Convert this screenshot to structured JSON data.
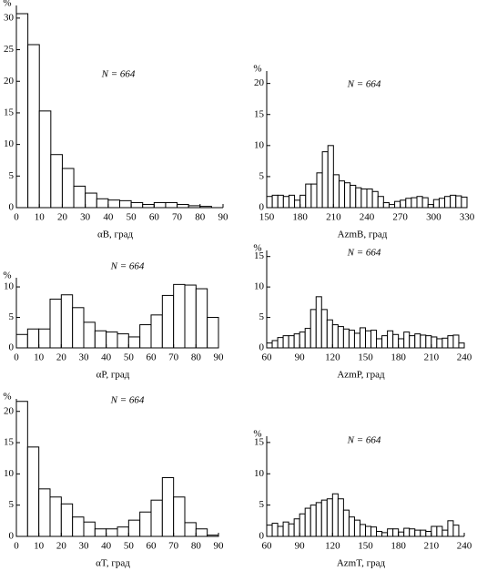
{
  "chart_data": [
    {
      "type": "histogram",
      "y_label": "%",
      "x_label": "αB, град",
      "annotation": "N = 664",
      "bins": [
        0,
        5,
        10,
        15,
        20,
        25,
        30,
        35,
        40,
        45,
        50,
        55,
        60,
        65,
        70,
        75,
        80,
        85,
        90
      ],
      "counts": [
        30.7,
        25.8,
        15.3,
        8.4,
        6.2,
        3.4,
        2.3,
        1.4,
        1.2,
        1.1,
        0.8,
        0.5,
        0.8,
        0.8,
        0.5,
        0.3,
        0.2,
        0
      ],
      "xlim": [
        0,
        90
      ],
      "xticks": [
        0,
        10,
        20,
        30,
        40,
        50,
        60,
        70,
        80,
        90
      ],
      "ylim": [
        0,
        32
      ],
      "yticks": [
        0,
        5,
        10,
        15,
        20,
        25,
        30
      ]
    },
    {
      "type": "histogram",
      "y_label": "%",
      "x_label": "AzmB, град",
      "annotation": "N = 664",
      "bins": [
        150,
        155,
        160,
        165,
        170,
        175,
        180,
        185,
        190,
        195,
        200,
        205,
        210,
        215,
        220,
        225,
        230,
        235,
        240,
        245,
        250,
        255,
        260,
        265,
        270,
        275,
        280,
        285,
        290,
        295,
        300,
        305,
        310,
        315,
        320,
        325,
        330
      ],
      "counts": [
        1.8,
        2.0,
        2.0,
        1.8,
        2.0,
        1.2,
        2.0,
        3.8,
        3.8,
        5.6,
        9.0,
        10.0,
        5.3,
        4.3,
        4.0,
        3.6,
        3.2,
        3.0,
        3.0,
        2.6,
        1.8,
        0.8,
        0.5,
        1.0,
        1.2,
        1.5,
        1.6,
        1.8,
        1.6,
        0.5,
        1.3,
        1.5,
        1.8,
        2.0,
        1.9,
        1.7
      ],
      "xlim": [
        150,
        330
      ],
      "xticks": [
        150,
        180,
        210,
        240,
        270,
        300,
        330
      ],
      "ylim": [
        0,
        22
      ],
      "yticks": [
        0,
        5,
        10,
        15,
        20
      ]
    },
    {
      "type": "histogram",
      "y_label": "%",
      "x_label": "αP, град",
      "annotation": "N = 664",
      "bins": [
        0,
        5,
        10,
        15,
        20,
        25,
        30,
        35,
        40,
        45,
        50,
        55,
        60,
        65,
        70,
        75,
        80,
        85,
        90
      ],
      "counts": [
        2.2,
        3.1,
        3.1,
        8.0,
        8.7,
        6.6,
        4.2,
        2.8,
        2.6,
        2.3,
        1.8,
        3.8,
        5.4,
        8.6,
        10.4,
        10.3,
        9.7,
        5.0
      ],
      "xlim": [
        0,
        90
      ],
      "xticks": [
        0,
        10,
        20,
        30,
        40,
        50,
        60,
        70,
        80,
        90
      ],
      "ylim": [
        0,
        11.5
      ],
      "yticks": [
        0,
        5,
        10
      ]
    },
    {
      "type": "histogram",
      "y_label": "%",
      "x_label": "AzmP, град",
      "annotation": "N = 664",
      "bins": [
        60,
        65,
        70,
        75,
        80,
        85,
        90,
        95,
        100,
        105,
        110,
        115,
        120,
        125,
        130,
        135,
        140,
        145,
        150,
        155,
        160,
        165,
        170,
        175,
        180,
        185,
        190,
        195,
        200,
        205,
        210,
        215,
        220,
        225,
        230,
        235,
        240
      ],
      "counts": [
        0.8,
        1.2,
        1.7,
        2.0,
        2.0,
        2.3,
        2.6,
        3.2,
        6.3,
        8.4,
        6.3,
        4.6,
        3.8,
        3.5,
        3.1,
        2.9,
        2.4,
        3.3,
        2.8,
        2.9,
        1.5,
        2.0,
        2.8,
        2.2,
        1.5,
        2.6,
        2.0,
        2.3,
        2.1,
        2.0,
        1.8,
        1.5,
        1.6,
        2.0,
        2.1,
        0.8
      ],
      "xlim": [
        60,
        240
      ],
      "xticks": [
        60,
        90,
        120,
        150,
        180,
        210,
        240
      ],
      "ylim": [
        0,
        16
      ],
      "yticks": [
        0,
        5,
        10,
        15
      ]
    },
    {
      "type": "histogram",
      "y_label": "%",
      "x_label": "αT, град",
      "annotation": "N = 664",
      "bins": [
        0,
        5,
        10,
        15,
        20,
        25,
        30,
        35,
        40,
        45,
        50,
        55,
        60,
        65,
        70,
        75,
        80,
        85,
        90
      ],
      "counts": [
        21.6,
        14.3,
        7.6,
        6.3,
        5.2,
        3.1,
        2.3,
        1.2,
        1.2,
        1.5,
        2.6,
        3.9,
        5.8,
        9.4,
        6.3,
        2.2,
        1.2,
        0.2
      ],
      "xlim": [
        0,
        90
      ],
      "xticks": [
        0,
        10,
        20,
        30,
        40,
        50,
        60,
        70,
        80,
        90
      ],
      "ylim": [
        0,
        22
      ],
      "yticks": [
        0,
        5,
        10,
        15,
        20
      ]
    },
    {
      "type": "histogram",
      "y_label": "%",
      "x_label": "AzmT, град",
      "annotation": "N = 664",
      "bins": [
        60,
        65,
        70,
        75,
        80,
        85,
        90,
        95,
        100,
        105,
        110,
        115,
        120,
        125,
        130,
        135,
        140,
        145,
        150,
        155,
        160,
        165,
        170,
        175,
        180,
        185,
        190,
        195,
        200,
        205,
        210,
        215,
        220,
        225,
        230,
        235,
        240
      ],
      "counts": [
        1.8,
        2.1,
        1.6,
        2.3,
        2.0,
        2.8,
        3.6,
        4.5,
        5.0,
        5.4,
        5.8,
        6.0,
        6.8,
        6.0,
        4.2,
        3.1,
        2.6,
        1.9,
        1.6,
        1.5,
        0.8,
        0.6,
        1.2,
        1.2,
        0.7,
        1.3,
        1.2,
        1.0,
        1.0,
        0.8,
        1.6,
        1.6,
        1.0,
        2.5,
        1.8,
        0
      ],
      "xlim": [
        60,
        240
      ],
      "xticks": [
        60,
        90,
        120,
        150,
        180,
        210,
        240
      ],
      "ylim": [
        0,
        16
      ],
      "yticks": [
        0,
        5,
        10,
        15
      ]
    }
  ]
}
